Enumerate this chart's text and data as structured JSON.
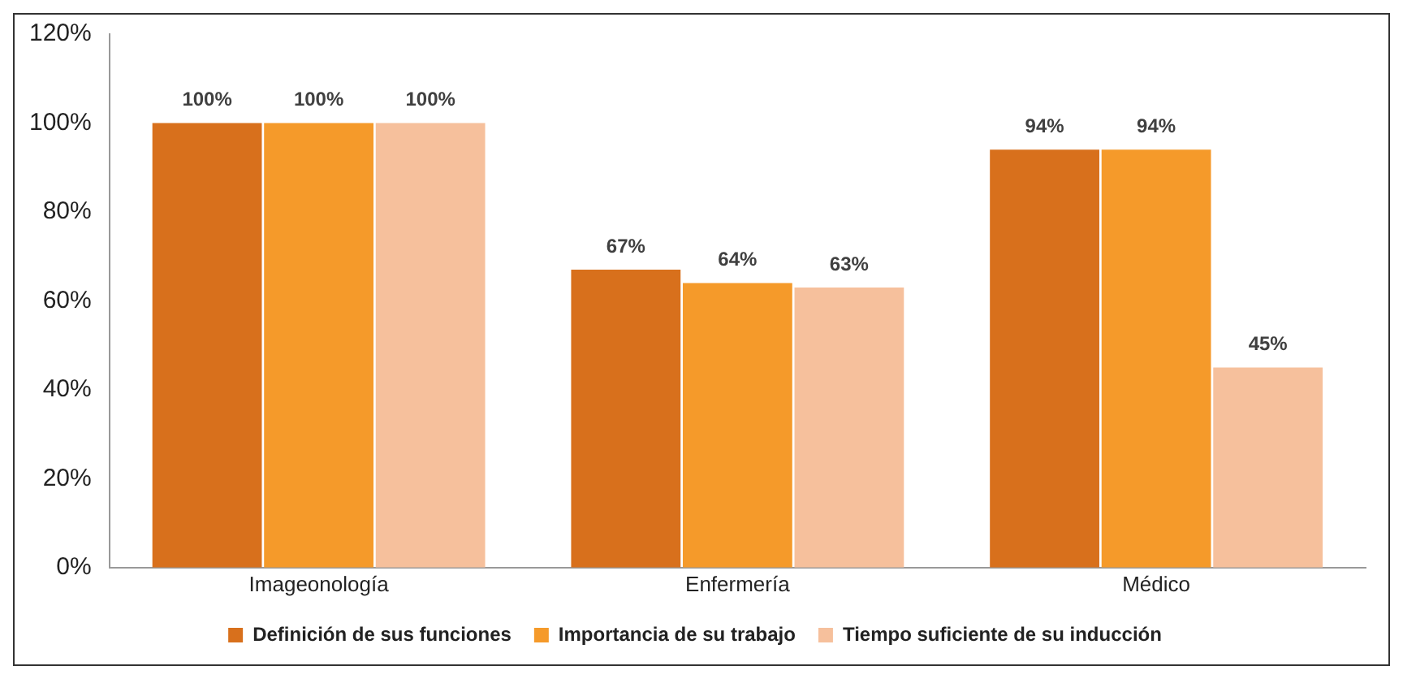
{
  "chart_data": {
    "type": "bar",
    "categories": [
      "Imageonología",
      "Enfermería",
      "Médico"
    ],
    "series": [
      {
        "name": "Definición de sus funciones",
        "color": "#d8701c",
        "values": [
          100,
          67,
          94
        ],
        "value_labels": [
          "100%",
          "67%",
          "94%"
        ]
      },
      {
        "name": "Importancia de su trabajo",
        "color": "#f59a2a",
        "values": [
          100,
          64,
          94
        ],
        "value_labels": [
          "100%",
          "64%",
          "94%"
        ]
      },
      {
        "name": "Tiempo suficiente de su inducción",
        "color": "#f6c09c",
        "values": [
          100,
          63,
          45
        ],
        "value_labels": [
          "100%",
          "63%",
          "45%"
        ]
      }
    ],
    "ylim": [
      0,
      120
    ],
    "yticks": [
      {
        "value": 0,
        "label": "0%"
      },
      {
        "value": 20,
        "label": "20%"
      },
      {
        "value": 40,
        "label": "40%"
      },
      {
        "value": 60,
        "label": "60%"
      },
      {
        "value": 80,
        "label": "80%"
      },
      {
        "value": 100,
        "label": "100%"
      },
      {
        "value": 120,
        "label": "120%"
      }
    ],
    "grid": false,
    "legend": "bottom"
  }
}
